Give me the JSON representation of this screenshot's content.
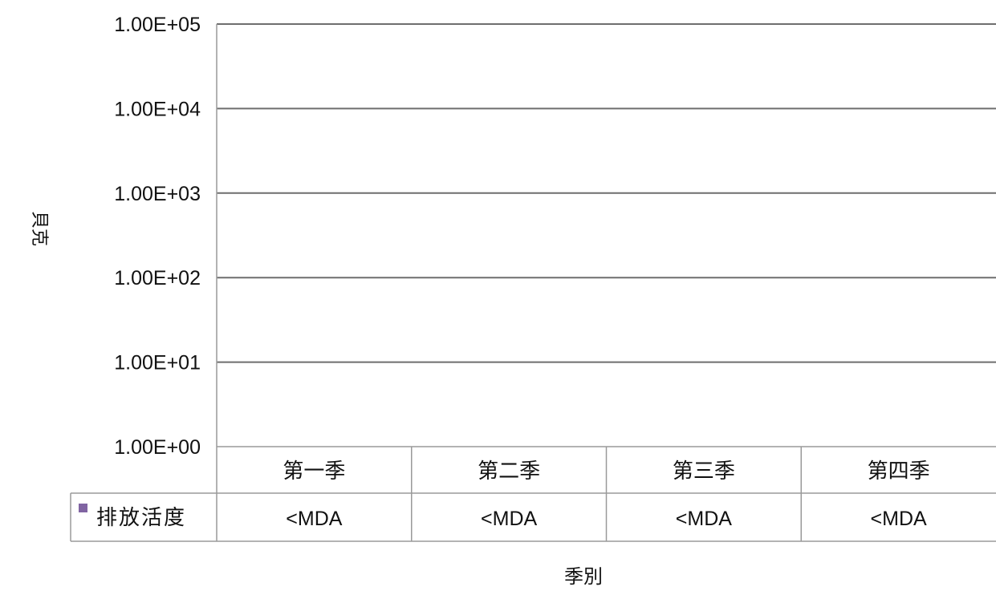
{
  "chart_data": {
    "type": "bar",
    "ylabel": "貝克",
    "xlabel": "季別",
    "y_scale": "log",
    "ylim": [
      1,
      100000
    ],
    "yticks": [
      "1.00E+00",
      "1.00E+01",
      "1.00E+02",
      "1.00E+03",
      "1.00E+04",
      "1.00E+05"
    ],
    "grid": true,
    "categories": [
      "第一季",
      "第二季",
      "第三季",
      "第四季"
    ],
    "series": [
      {
        "name": "排放活度",
        "color": "#8064a2",
        "values": [
          "<MDA",
          "<MDA",
          "<MDA",
          "<MDA"
        ]
      }
    ],
    "data_table": true
  }
}
